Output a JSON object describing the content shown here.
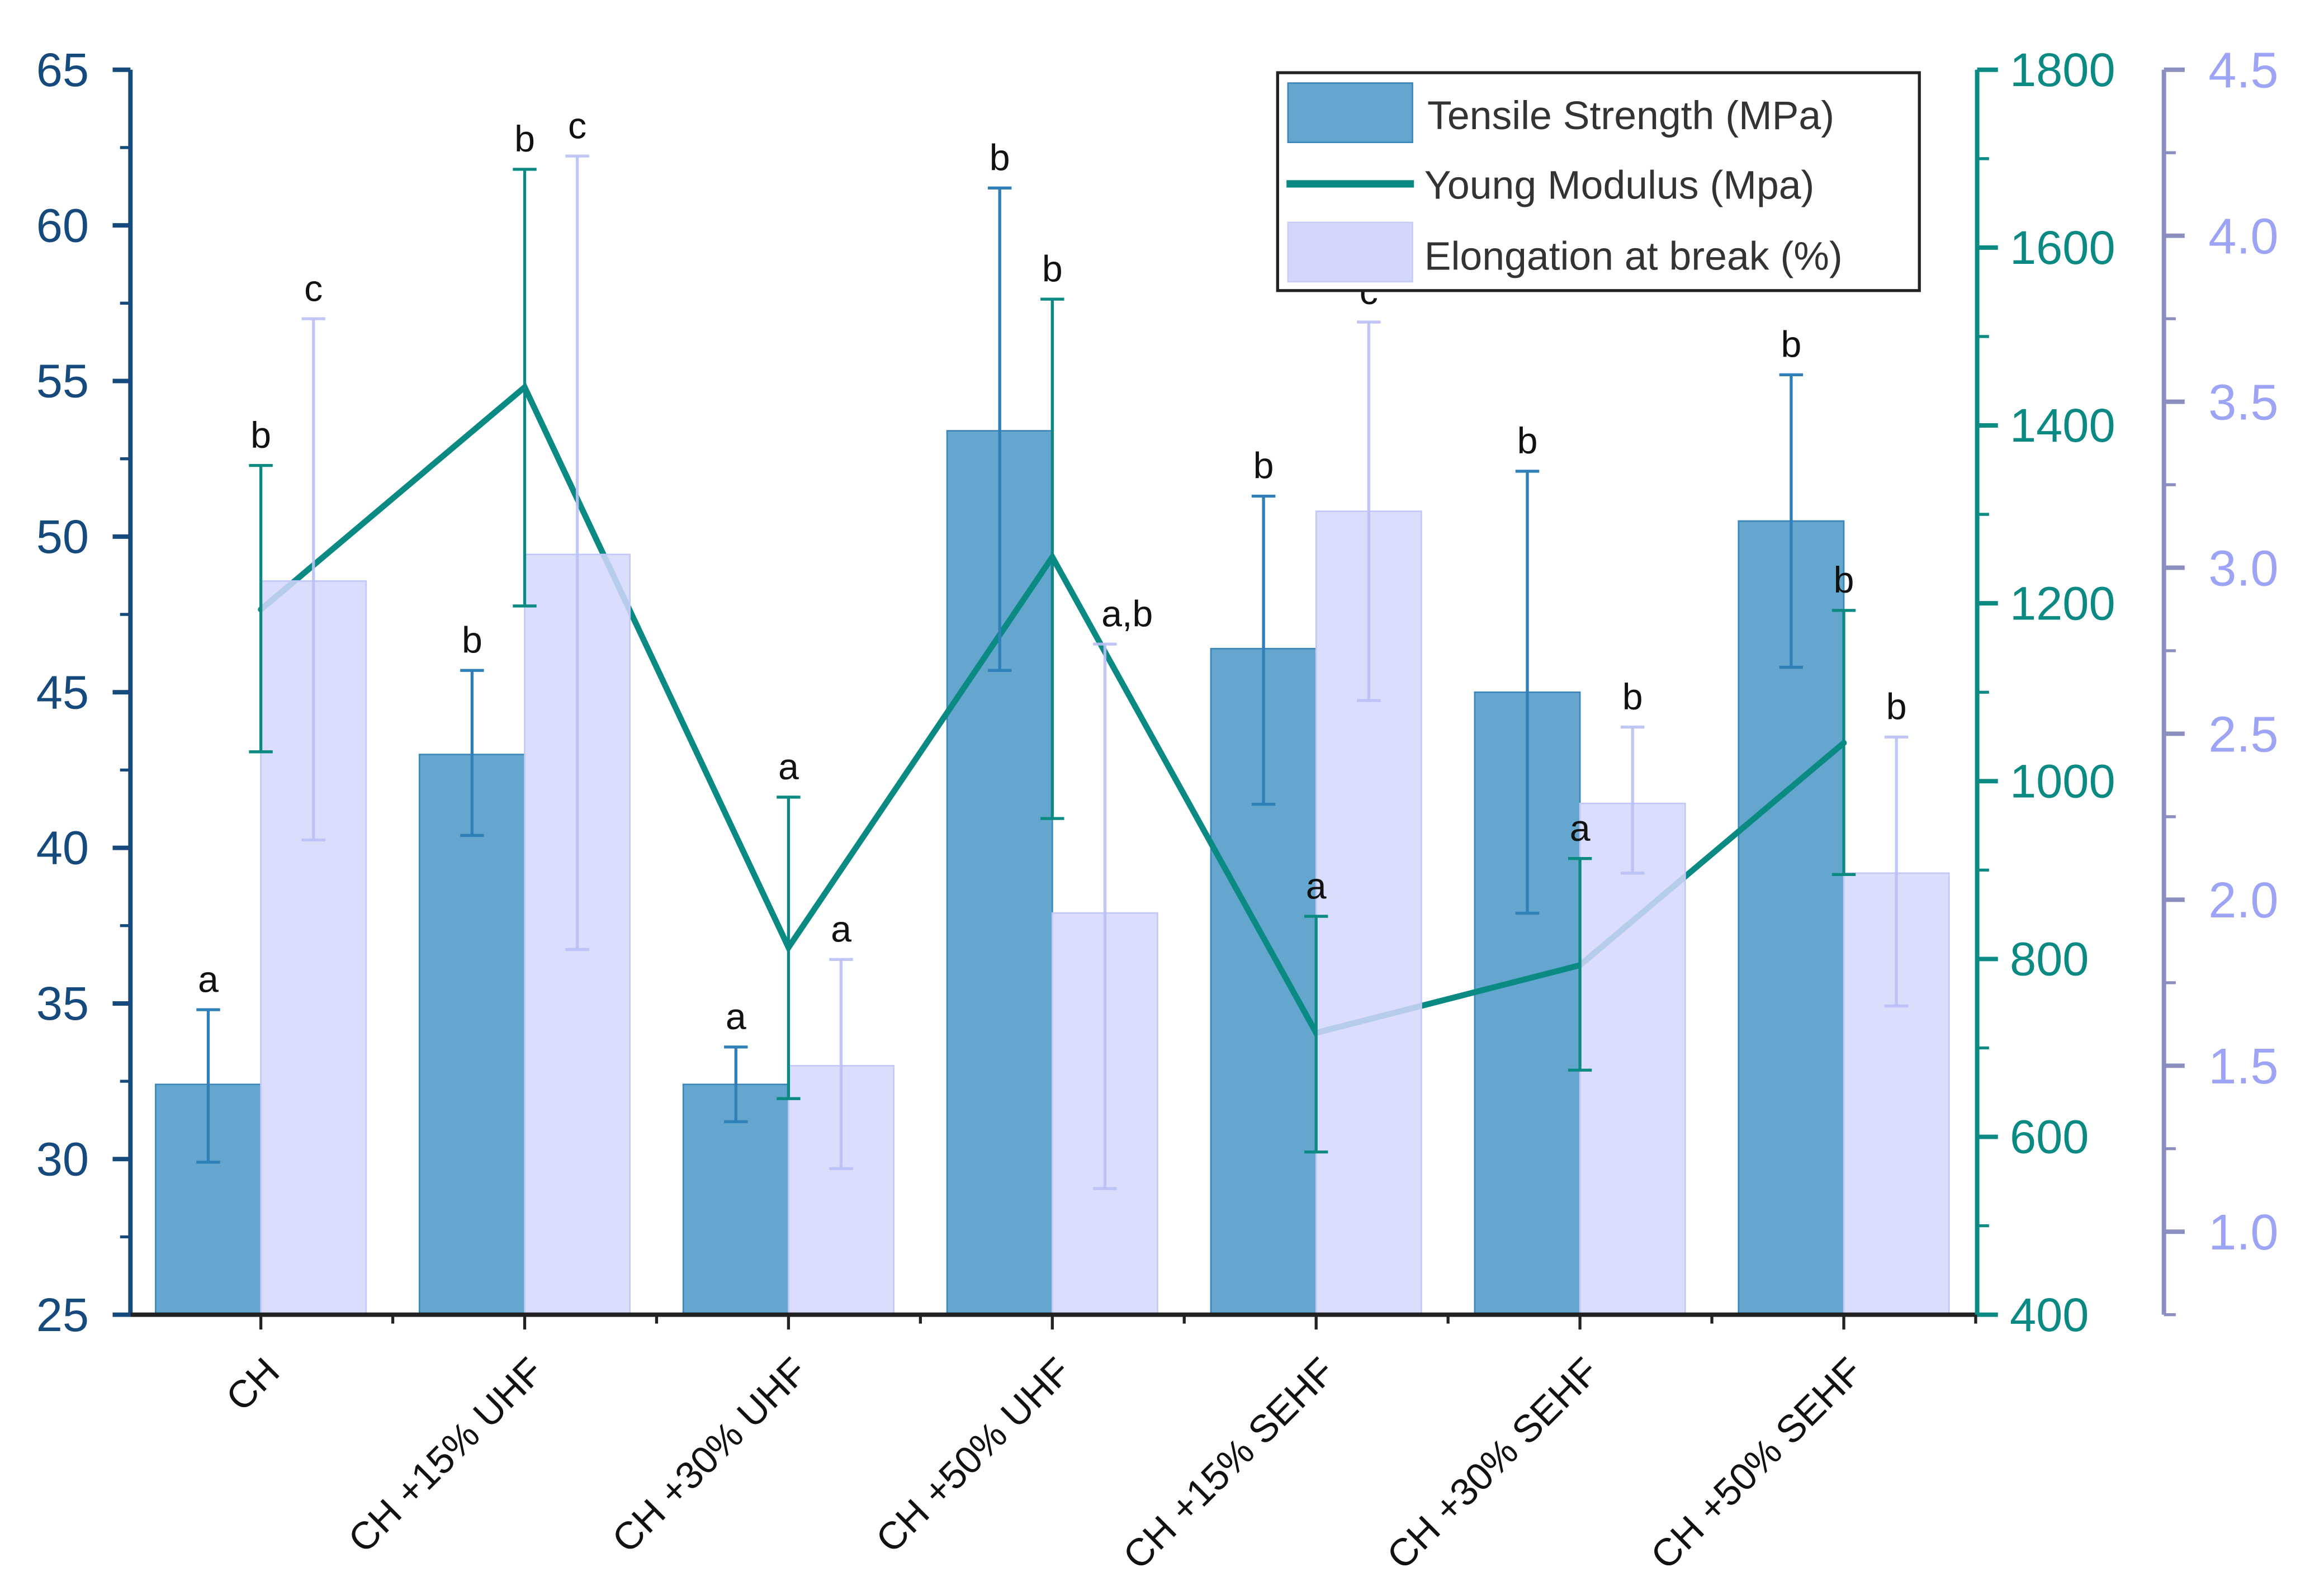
{
  "chart_data": {
    "type": "bar",
    "categories": [
      "CH",
      "CH +15% UHF",
      "CH +30% UHF",
      "CH +50% UHF",
      "CH +15% SEHF",
      "CH +30% SEHF",
      "CH +50% SEHF"
    ],
    "axes": {
      "left": {
        "range": [
          25,
          65
        ],
        "ticks": [
          25,
          30,
          35,
          40,
          45,
          50,
          55,
          60,
          65
        ],
        "color": "#174a7c"
      },
      "right1": {
        "range": [
          400,
          1800
        ],
        "ticks": [
          400,
          600,
          800,
          1000,
          1200,
          1400,
          1600,
          1800
        ],
        "color": "#0b8a84"
      },
      "right2": {
        "range": [
          0.75,
          4.5
        ],
        "ticks": [
          "1.0",
          "1.5",
          "2.0",
          "2.5",
          "3.0",
          "3.5",
          "4.0",
          "4.5"
        ],
        "color": "#9ea4f5",
        "line_color": "#8b8fc0"
      }
    },
    "series": [
      {
        "name": "Tensile Strength (MPa)",
        "type": "bar",
        "axis": "left",
        "color": "#64a6cd",
        "edge": "#3c86ba",
        "values": [
          32.4,
          43.0,
          32.4,
          53.4,
          46.4,
          45.0,
          50.5
        ],
        "err_low": [
          29.9,
          40.4,
          31.2,
          45.7,
          41.4,
          37.9,
          45.8
        ],
        "err_high": [
          34.8,
          45.7,
          33.6,
          61.2,
          51.3,
          52.1,
          55.2
        ],
        "letters": [
          "a",
          "b",
          "a",
          "b",
          "b",
          "b",
          "b"
        ]
      },
      {
        "name": "Young Modulus (Mpa)",
        "type": "line",
        "axis": "right1",
        "color": "#0b8a84",
        "values": [
          1193,
          1443,
          813,
          1252,
          717,
          793,
          1043
        ],
        "err_low": [
          1033,
          1197,
          643,
          958,
          583,
          675,
          895
        ],
        "err_high": [
          1355,
          1688,
          982,
          1542,
          848,
          913,
          1192
        ],
        "letters": [
          "b",
          "b",
          "a",
          "b",
          "a",
          "a",
          "b"
        ]
      },
      {
        "name": "Elongation at break (%)",
        "type": "bar",
        "axis": "right2",
        "color": "#d3d7fb",
        "edge": "#c2c8f7",
        "values": [
          2.96,
          3.04,
          1.5,
          1.96,
          3.17,
          2.29,
          2.08
        ],
        "err_low": [
          2.18,
          1.85,
          1.19,
          1.13,
          2.6,
          2.08,
          1.68
        ],
        "err_high": [
          3.75,
          4.24,
          1.82,
          2.77,
          3.74,
          2.52,
          2.49
        ],
        "letters": [
          "c",
          "c",
          "a",
          "a,b",
          "c",
          "b",
          "b"
        ]
      }
    ],
    "legend": {
      "placement": "top-right",
      "entries": [
        "Tensile Strength (MPa)",
        "Young Modulus (Mpa)",
        "Elongation at break (%)"
      ]
    },
    "title": "",
    "xlabel": "",
    "ylabel": ""
  }
}
